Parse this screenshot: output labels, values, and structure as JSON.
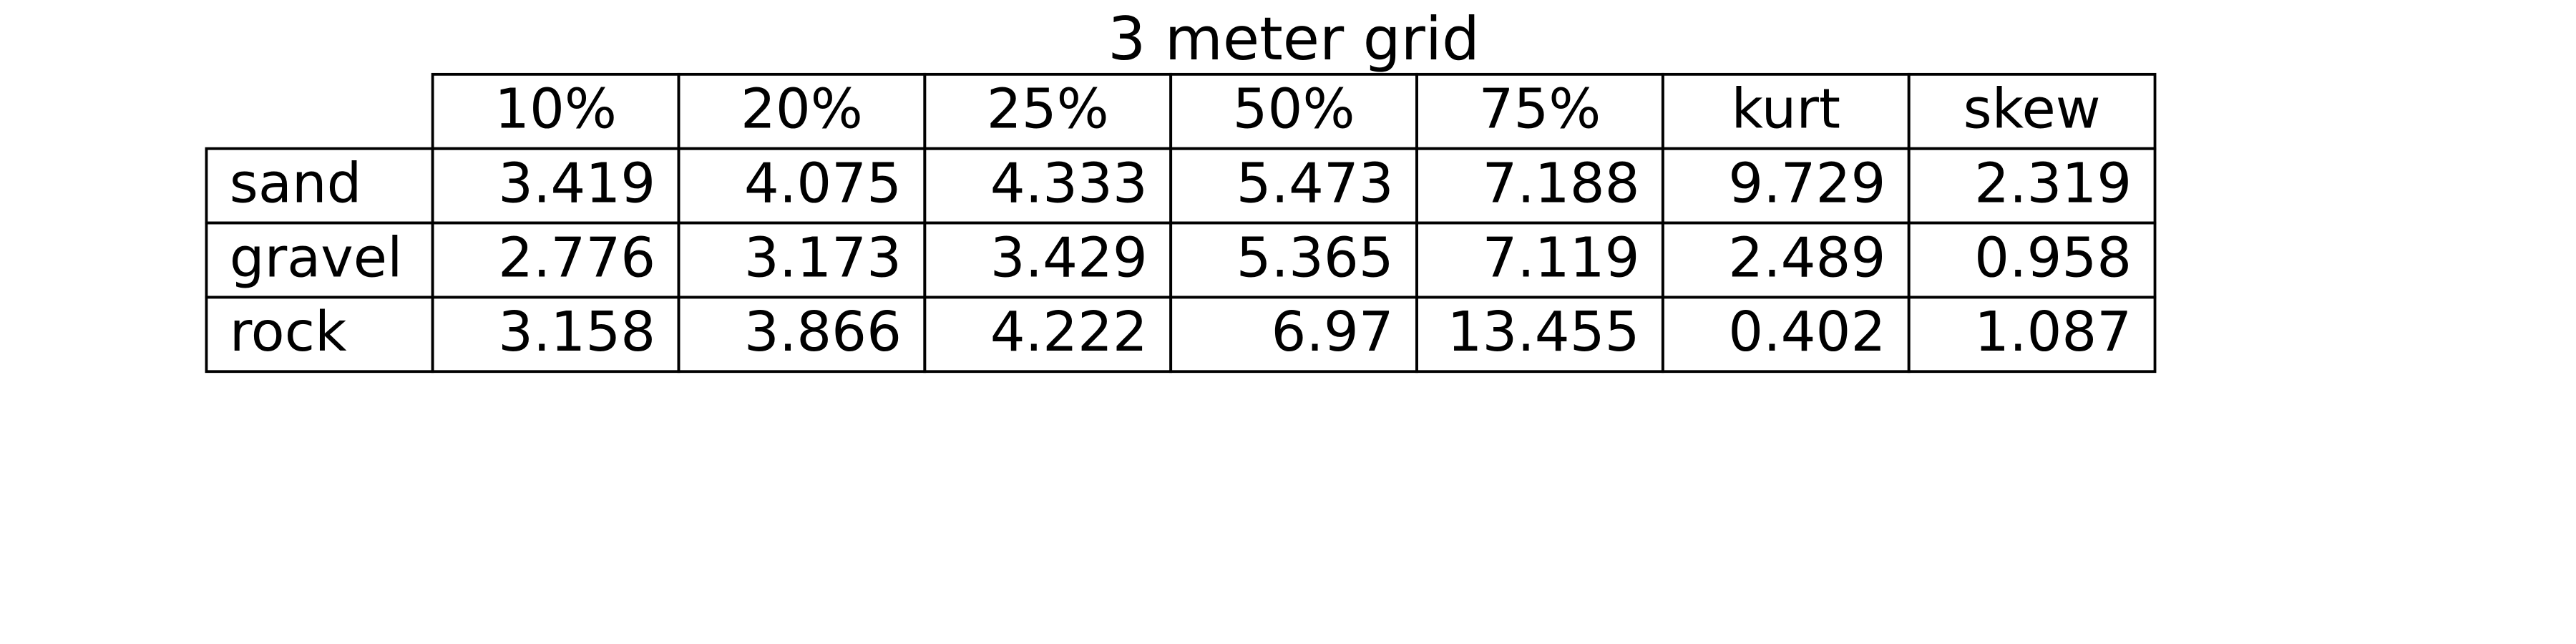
{
  "chart_data": {
    "type": "table",
    "title": "3 meter grid",
    "col_labels": [
      "10%",
      "20%",
      "25%",
      "50%",
      "75%",
      "kurt",
      "skew"
    ],
    "row_labels": [
      "sand",
      "gravel",
      "rock"
    ],
    "cells": [
      [
        "3.419",
        "4.075",
        "4.333",
        "5.473",
        "7.188",
        "9.729",
        "2.319"
      ],
      [
        "2.776",
        "3.173",
        "3.429",
        "5.365",
        "7.119",
        "2.489",
        "0.958"
      ],
      [
        "3.158",
        "3.866",
        "4.222",
        "6.97",
        "13.455",
        "0.402",
        "1.087"
      ]
    ],
    "grid": true
  }
}
